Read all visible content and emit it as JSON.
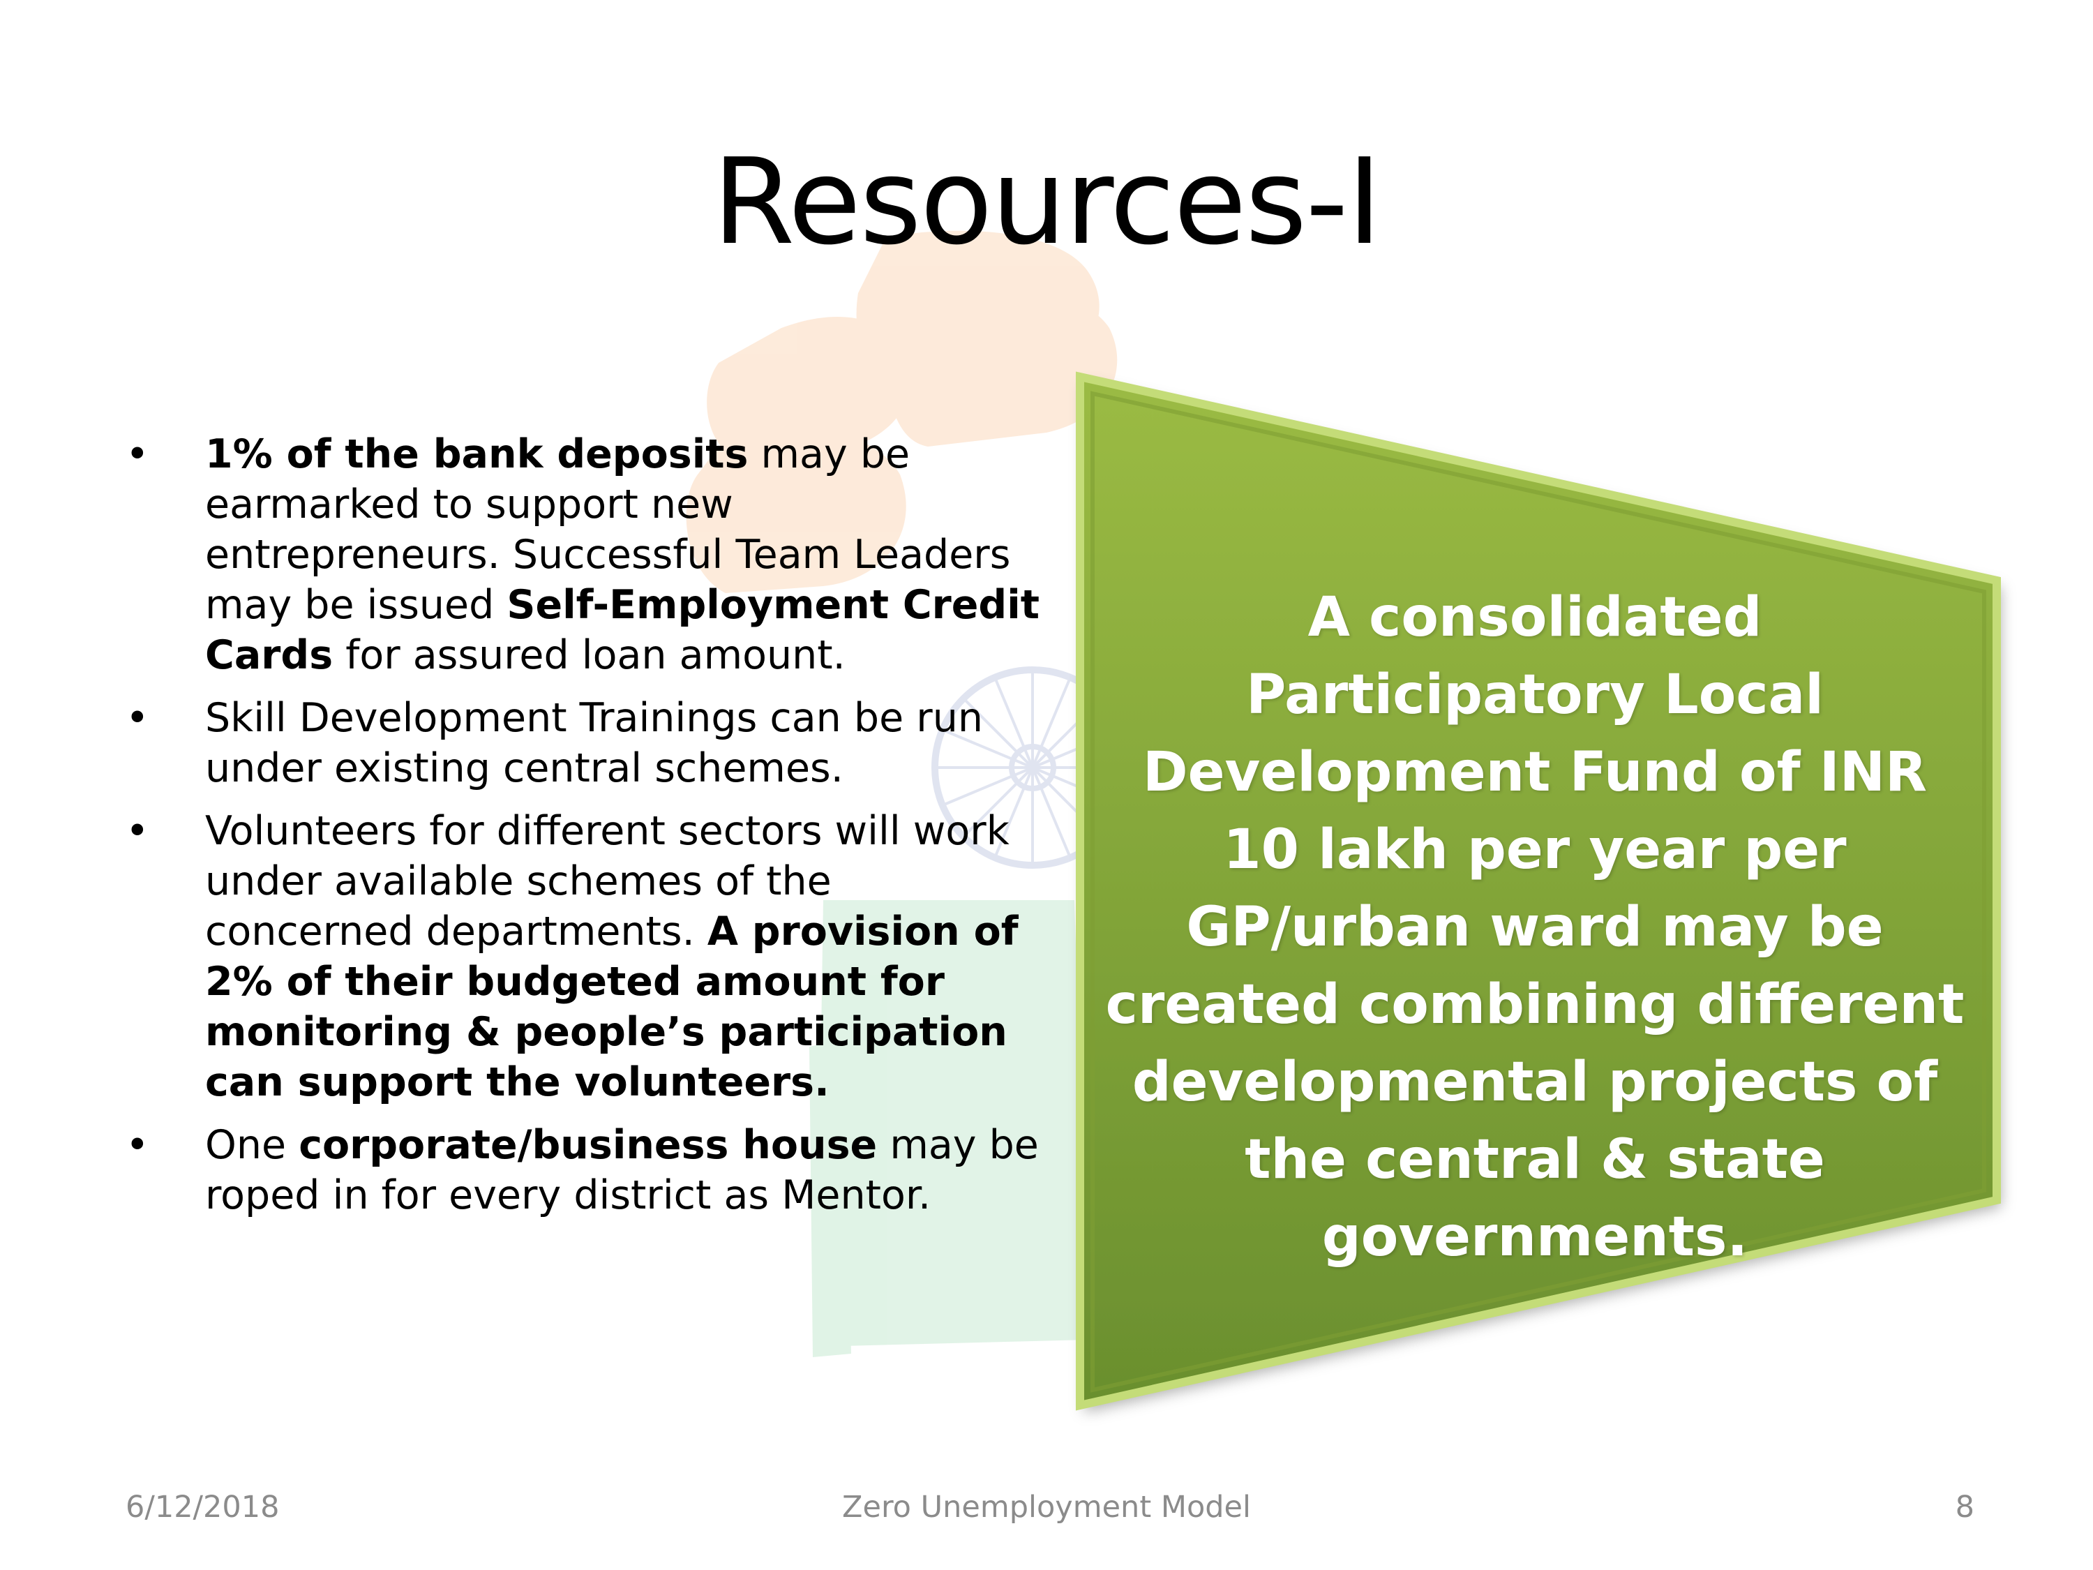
{
  "slide": {
    "title": "Resources-I",
    "bullets": [
      {
        "parts": [
          {
            "text": "1% of the bank deposits",
            "bold": true
          },
          {
            "text": " may be earmarked to support new entrepreneurs. Successful  Team Leaders may be  issued  ",
            "bold": false
          },
          {
            "text": "Self-Employment Credit Cards",
            "bold": true
          },
          {
            "text": " for assured loan amount.",
            "bold": false
          }
        ]
      },
      {
        "parts": [
          {
            "text": "Skill Development Trainings can be run under existing central schemes.",
            "bold": false
          }
        ]
      },
      {
        "parts": [
          {
            "text": "Volunteers for different sectors will work under available schemes of  the concerned departments. ",
            "bold": false
          },
          {
            "text": "A provision of 2% of their budgeted amount  for monitoring  & people’s participation can support the volunteers.",
            "bold": true
          }
        ]
      },
      {
        "parts": [
          {
            "text": "One ",
            "bold": false
          },
          {
            "text": "corporate/business house",
            "bold": true
          },
          {
            "text": " may be roped in for every district as Mentor.",
            "bold": false
          }
        ]
      }
    ],
    "shape_text": "A consolidated Participatory Local Development Fund of INR 10 lakh per year per GP/urban ward  may be created combining different developmental projects of the central & state governments.",
    "colors": {
      "shape_top": "#9bbb44",
      "shape_bottom": "#6a8f2e",
      "footer_text": "#8b8b8b",
      "saffron": "#f7a35c",
      "green": "#5bbf78",
      "chakra": "#5b6db0"
    },
    "watermark_icon": "raised-fist-tricolor-icon"
  },
  "footer": {
    "date": "6/12/2018",
    "center": "Zero Unemployment Model",
    "page": "8"
  }
}
